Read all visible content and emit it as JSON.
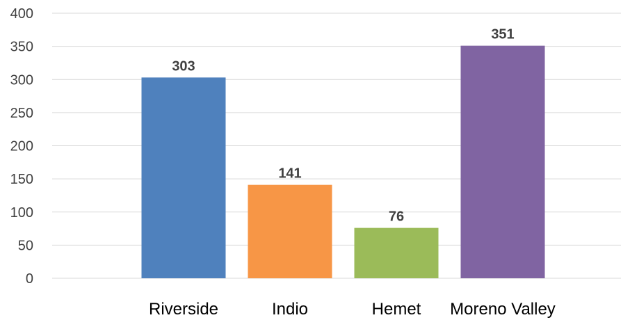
{
  "chart_data": {
    "type": "bar",
    "title": "",
    "xlabel": "",
    "ylabel": "",
    "categories": [
      "Riverside",
      "Indio",
      "Hemet",
      "Moreno Valley"
    ],
    "values": [
      303,
      141,
      76,
      351
    ],
    "colors": [
      "#4f81bd",
      "#f79646",
      "#9bbb59",
      "#8064a2"
    ],
    "ylim": [
      0,
      400
    ],
    "yticks": [
      0,
      50,
      100,
      150,
      200,
      250,
      300,
      350,
      400
    ],
    "grid": true,
    "legend": "none",
    "data_labels": true
  }
}
